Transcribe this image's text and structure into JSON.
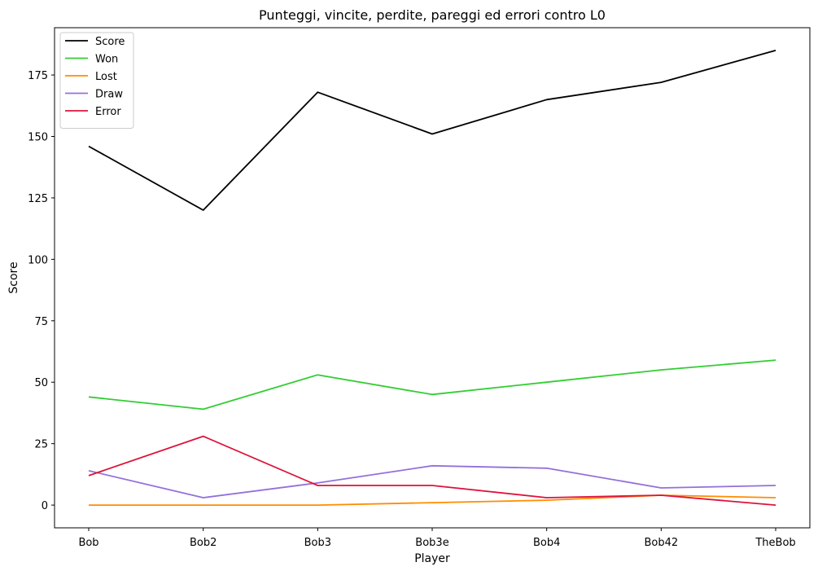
{
  "chart_data": {
    "type": "line",
    "title": "Punteggi, vincite, perdite, pareggi ed errori contro L0",
    "xlabel": "Player",
    "ylabel": "Score",
    "categories": [
      "Bob",
      "Bob2",
      "Bob3",
      "Bob3e",
      "Bob4",
      "Bob42",
      "TheBob"
    ],
    "ylim": [
      -9.25,
      194.25
    ],
    "yticks": [
      0,
      25,
      50,
      75,
      100,
      125,
      150,
      175
    ],
    "grid": false,
    "legend_position": "top-left",
    "series": [
      {
        "name": "Score",
        "color": "#000000",
        "values": [
          146,
          120,
          168,
          151,
          165,
          172,
          185
        ]
      },
      {
        "name": "Won",
        "color": "#32cd32",
        "values": [
          44,
          39,
          53,
          45,
          50,
          55,
          59
        ]
      },
      {
        "name": "Lost",
        "color": "#ff8c00",
        "values": [
          0,
          0,
          0,
          1,
          2,
          4,
          3
        ]
      },
      {
        "name": "Draw",
        "color": "#9370db",
        "values": [
          14,
          3,
          9,
          16,
          15,
          7,
          8
        ]
      },
      {
        "name": "Error",
        "color": "#dc143c",
        "values": [
          12,
          28,
          8,
          8,
          3,
          4,
          0
        ]
      }
    ]
  }
}
